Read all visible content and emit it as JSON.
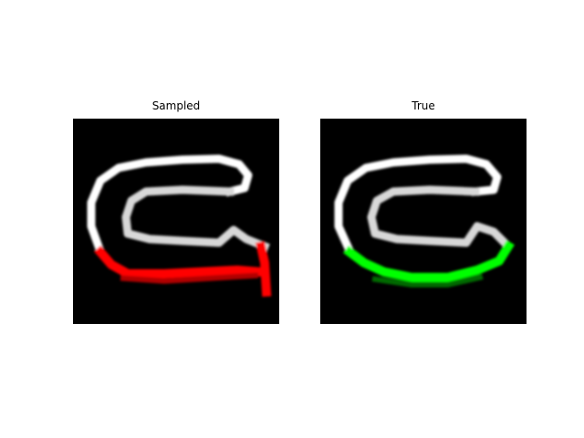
{
  "panels": [
    {
      "title": "Sampled",
      "highlight_color": "#ff0000",
      "background_color": "#000000",
      "stroke_color": "#ffffff"
    },
    {
      "title": "True",
      "highlight_color": "#00ff00",
      "background_color": "#000000",
      "stroke_color": "#ffffff"
    }
  ]
}
